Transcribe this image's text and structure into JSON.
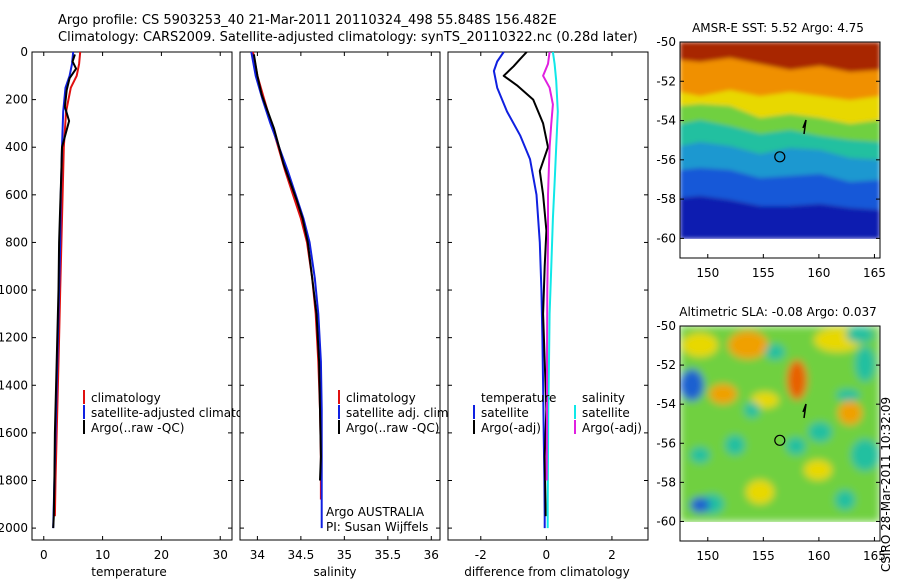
{
  "header": {
    "line1": "Argo profile: CS 5903253_40 21-Mar-2011 20110324_498 55.848S 156.482E",
    "line2": "Climatology: CARS2009. Satellite-adjusted climatology: synTS_20110322.nc (0.28d later)"
  },
  "footer": {
    "stamp": "CSIRO 28-Mar-2011 10:32:09"
  },
  "colors": {
    "climatology": "#e01010",
    "satellite": "#1020e0",
    "argo": "#000000",
    "sal_satellite": "#10e8e8",
    "sal_argo": "#e020e0"
  },
  "chart_data": [
    {
      "type": "line",
      "id": "temperature",
      "xlabel": "temperature",
      "xlim": [
        -2,
        32
      ],
      "ylim": [
        2050,
        0
      ],
      "xticks": [
        0,
        10,
        20,
        30
      ],
      "yticks": [
        0,
        200,
        400,
        600,
        800,
        1000,
        1200,
        1400,
        1600,
        1800,
        2000
      ],
      "legend": [
        "climatology",
        "satellite-adjusted climatology",
        "Argo(..raw -QC)"
      ],
      "legend_position": "lower-middle",
      "series": [
        {
          "name": "climatology",
          "color_key": "climatology",
          "x": [
            6.2,
            6.0,
            5.6,
            4.6,
            3.8,
            3.4,
            3.2,
            3.0,
            2.8,
            2.6,
            2.4,
            2.2,
            2.0,
            1.9
          ],
          "y": [
            0,
            50,
            100,
            150,
            250,
            400,
            600,
            800,
            1000,
            1200,
            1400,
            1600,
            1800,
            1950
          ]
        },
        {
          "name": "satellite-adjusted climatology",
          "color_key": "satellite",
          "x": [
            5.0,
            4.8,
            4.4,
            3.7,
            3.3,
            3.1,
            2.9,
            2.8,
            2.6,
            2.4,
            2.2,
            2.0,
            1.8,
            1.6
          ],
          "y": [
            0,
            50,
            100,
            150,
            250,
            400,
            600,
            800,
            1000,
            1200,
            1400,
            1600,
            1800,
            2000
          ]
        },
        {
          "name": "Argo(..raw -QC)",
          "color_key": "argo",
          "x": [
            5.3,
            4.9,
            5.5,
            4.4,
            3.9,
            3.6,
            4.3,
            3.1,
            3.0,
            2.8,
            2.6,
            2.5,
            2.3,
            2.1,
            1.9,
            1.8,
            1.7,
            1.6
          ],
          "y": [
            10,
            40,
            70,
            110,
            160,
            230,
            290,
            400,
            500,
            650,
            800,
            1000,
            1200,
            1400,
            1600,
            1800,
            1950,
            2000
          ]
        }
      ]
    },
    {
      "type": "line",
      "id": "salinity",
      "xlabel": "salinity",
      "xlim": [
        33.8,
        36.1
      ],
      "ylim": [
        2050,
        0
      ],
      "xticks": [
        34,
        34.5,
        35,
        35.5,
        36
      ],
      "legend": [
        "climatology",
        "satellite adj. clim.",
        "Argo(..raw -QC)"
      ],
      "legend_position": "lower-right",
      "annotations": [
        "Argo AUSTRALIA",
        "PI: Susan Wijffels"
      ],
      "series": [
        {
          "name": "climatology",
          "color_key": "climatology",
          "x": [
            33.95,
            34.0,
            34.08,
            34.16,
            34.24,
            34.32,
            34.41,
            34.5,
            34.57,
            34.63,
            34.67,
            34.7,
            34.72,
            34.73,
            34.73
          ],
          "y": [
            0,
            100,
            200,
            300,
            400,
            500,
            600,
            700,
            800,
            950,
            1100,
            1300,
            1500,
            1700,
            1880
          ]
        },
        {
          "name": "satellite adj. clim.",
          "color_key": "satellite",
          "x": [
            33.93,
            33.98,
            34.06,
            34.15,
            34.25,
            34.35,
            34.44,
            34.53,
            34.6,
            34.66,
            34.7,
            34.73,
            34.74,
            34.74,
            34.74
          ],
          "y": [
            0,
            100,
            200,
            300,
            400,
            500,
            600,
            700,
            800,
            950,
            1100,
            1300,
            1500,
            1700,
            2000
          ]
        },
        {
          "name": "Argo(..raw -QC)",
          "color_key": "argo",
          "x": [
            33.96,
            34.0,
            34.05,
            34.12,
            34.19,
            34.25,
            34.3,
            34.37,
            34.45,
            34.52,
            34.58,
            34.63,
            34.68,
            34.71,
            34.72,
            34.73,
            34.72
          ],
          "y": [
            10,
            100,
            180,
            250,
            320,
            400,
            470,
            540,
            620,
            700,
            800,
            950,
            1100,
            1300,
            1500,
            1700,
            1800
          ]
        }
      ]
    },
    {
      "type": "line",
      "id": "difference",
      "xlabel": "difference from climatology",
      "xlim": [
        -3,
        3.1
      ],
      "ylim": [
        2050,
        0
      ],
      "xticks": [
        -2,
        0,
        2
      ],
      "legend_groups": [
        {
          "title": "temperature",
          "entries": [
            "satellite",
            "Argo(-adj)"
          ]
        },
        {
          "title": "salinity",
          "entries": [
            "satellite",
            "Argo(-adj)"
          ]
        }
      ],
      "legend_position": "lower",
      "series": [
        {
          "name": "temperature satellite",
          "color_key": "satellite",
          "x": [
            -1.3,
            -1.5,
            -1.6,
            -1.5,
            -1.2,
            -0.8,
            -0.5,
            -0.3,
            -0.2,
            -0.15,
            -0.12,
            -0.1,
            -0.08,
            -0.06,
            -0.05,
            -0.05
          ],
          "y": [
            0,
            40,
            80,
            150,
            250,
            350,
            450,
            600,
            800,
            1000,
            1200,
            1400,
            1600,
            1800,
            1950,
            2000
          ]
        },
        {
          "name": "temperature Argo(-adj)",
          "color_key": "argo",
          "x": [
            -0.6,
            -0.8,
            -1.0,
            -1.3,
            -0.9,
            -0.4,
            -0.1,
            0.05,
            -0.2,
            -0.1,
            0.0,
            -0.05,
            -0.1,
            -0.05,
            0.0,
            -0.05,
            -0.02
          ],
          "y": [
            0,
            30,
            60,
            100,
            140,
            200,
            300,
            400,
            500,
            600,
            750,
            900,
            1100,
            1300,
            1500,
            1700,
            1950
          ]
        },
        {
          "name": "salinity satellite",
          "color_key": "sal_satellite",
          "x": [
            0.2,
            0.25,
            0.3,
            0.35,
            0.3,
            0.25,
            0.2,
            0.15,
            0.1,
            0.08,
            0.06,
            0.05,
            0.04,
            0.04
          ],
          "y": [
            0,
            50,
            120,
            250,
            400,
            550,
            700,
            900,
            1100,
            1300,
            1500,
            1700,
            1900,
            2000
          ]
        },
        {
          "name": "salinity Argo(-adj)",
          "color_key": "sal_argo",
          "x": [
            0.1,
            0.05,
            -0.1,
            0.1,
            0.2,
            0.15,
            0.1,
            0.05,
            0.05,
            0.03,
            0.02,
            0.02,
            0.01
          ],
          "y": [
            0,
            50,
            100,
            150,
            220,
            300,
            400,
            600,
            800,
            1000,
            1300,
            1500,
            1800
          ]
        }
      ]
    },
    {
      "type": "heatmap",
      "id": "sst_map",
      "title": "AMSR-E SST: 5.52 Argo: 4.75",
      "xlim": [
        147.5,
        165.5
      ],
      "ylim": [
        -61,
        -50
      ],
      "xticks": [
        150,
        155,
        160,
        165
      ],
      "yticks": [
        -50,
        -52,
        -54,
        -56,
        -58,
        -60
      ],
      "data_ylim": [
        -60,
        -50
      ],
      "float_position": [
        156.482,
        -55.848
      ]
    },
    {
      "type": "heatmap",
      "id": "sla_map",
      "title": "Altimetric SLA: -0.08 Argo: 0.037",
      "xlim": [
        147.5,
        165.5
      ],
      "ylim": [
        -61,
        -50
      ],
      "xticks": [
        150,
        155,
        160,
        165
      ],
      "yticks": [
        -50,
        -52,
        -54,
        -56,
        -58,
        -60
      ],
      "data_ylim": [
        -60,
        -50
      ],
      "float_position": [
        156.482,
        -55.848
      ]
    }
  ]
}
